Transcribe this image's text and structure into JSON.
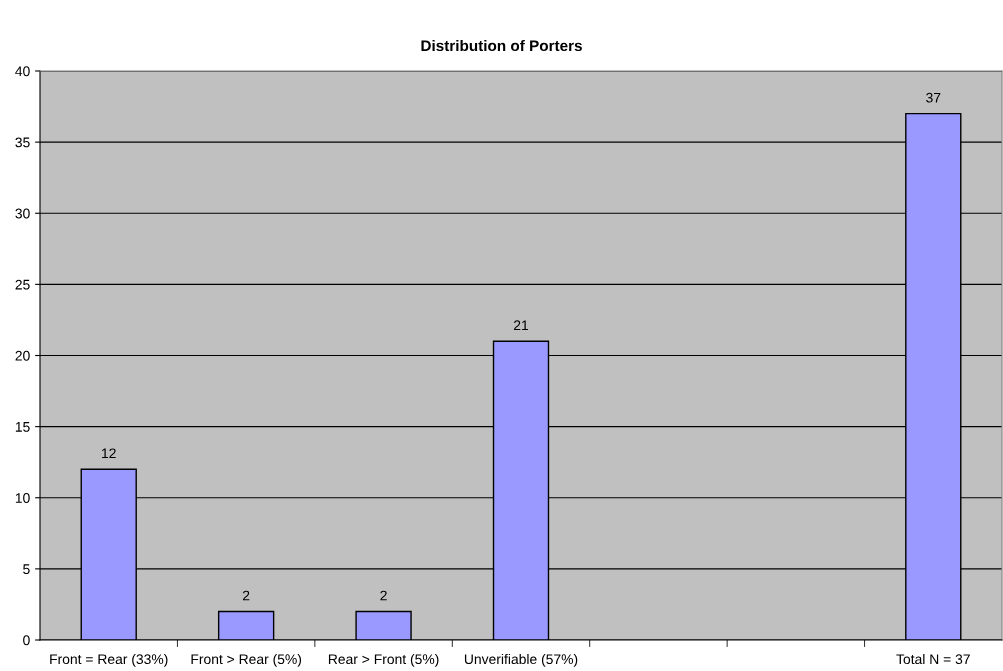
{
  "chart_data": {
    "type": "bar",
    "title": "Distribution of Porters",
    "categories": [
      "Front = Rear (33%)",
      "Front > Rear (5%)",
      "Rear > Front (5%)",
      "Unverifiable (57%)",
      null,
      null,
      "Total N = 37"
    ],
    "values": [
      12,
      2,
      2,
      21,
      null,
      null,
      37
    ],
    "color": "#9999ff",
    "ylim": [
      0,
      40
    ],
    "yticks": [
      0,
      5,
      10,
      15,
      20,
      25,
      30,
      35,
      40
    ],
    "grid": "y",
    "data_labels": true,
    "legend": false
  }
}
